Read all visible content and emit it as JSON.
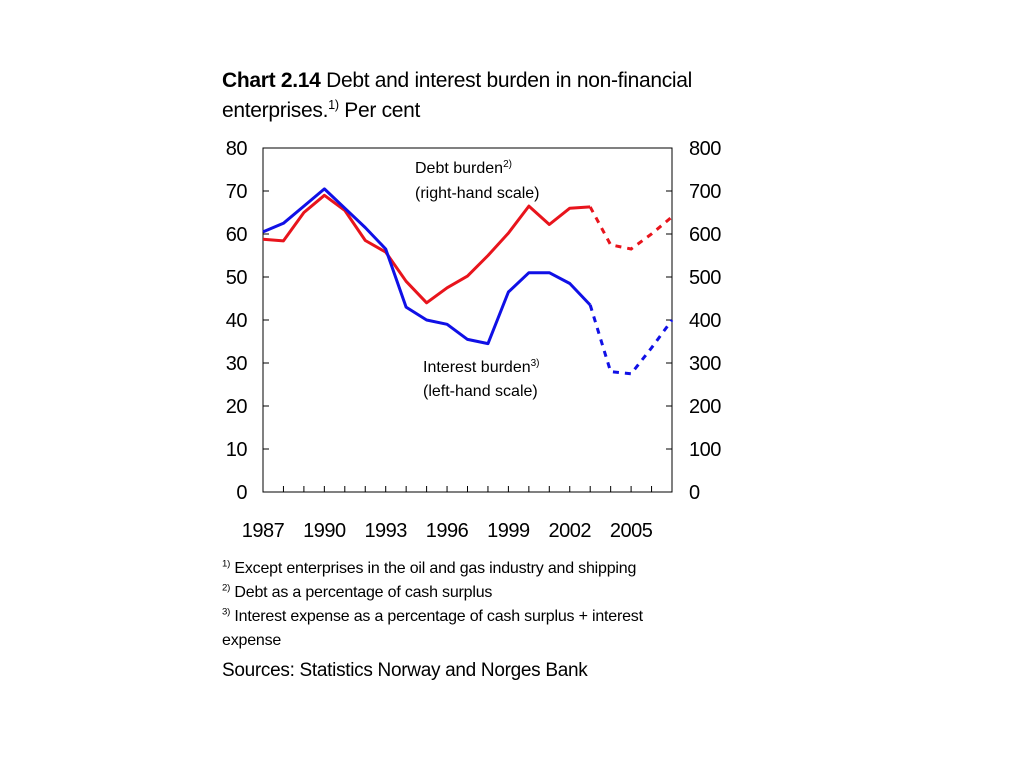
{
  "title": {
    "bold": "Chart 2.14",
    "text_line1": " Debt and interest burden in non-financial",
    "text_line2": "enterprises.",
    "sup": "1)",
    "text_after_sup": " Per cent"
  },
  "chart_data": {
    "type": "line",
    "x_ticks": [
      "1987",
      "1990",
      "1993",
      "1996",
      "1999",
      "2002",
      "2005"
    ],
    "xlim": [
      1987,
      2007
    ],
    "y_left": {
      "ticks": [
        "0",
        "10",
        "20",
        "30",
        "40",
        "50",
        "60",
        "70",
        "80"
      ],
      "ylim": [
        0,
        80
      ]
    },
    "y_right": {
      "ticks": [
        "0",
        "100",
        "200",
        "300",
        "400",
        "500",
        "600",
        "700",
        "800"
      ],
      "ylim": [
        0,
        800
      ]
    },
    "series": [
      {
        "name": "Debt burden",
        "label_sup": "2)",
        "label_line2": "(right-hand scale)",
        "color": "#e8141c",
        "axis": "right",
        "x": [
          1987,
          1988,
          1989,
          1990,
          1991,
          1992,
          1993,
          1994,
          1995,
          1996,
          1997,
          1998,
          1999,
          2000,
          2001,
          2002,
          2003
        ],
        "values": [
          588,
          584,
          650,
          690,
          655,
          585,
          558,
          490,
          440,
          475,
          502,
          550,
          602,
          665,
          622,
          660,
          663
        ],
        "projection_x": [
          2003,
          2004,
          2005,
          2006,
          2007
        ],
        "projection_values": [
          663,
          575,
          565,
          600,
          640
        ]
      },
      {
        "name": "Interest burden",
        "label_sup": "3)",
        "label_line2": "(left-hand scale)",
        "color": "#1010e6",
        "axis": "left",
        "x": [
          1987,
          1988,
          1989,
          1990,
          1991,
          1992,
          1993,
          1994,
          1995,
          1996,
          1997,
          1998,
          1999,
          2000,
          2001,
          2002,
          2003
        ],
        "values": [
          60.5,
          62.5,
          66.5,
          70.5,
          66,
          61.5,
          56.5,
          43,
          40,
          39,
          35.5,
          34.5,
          46.5,
          51,
          51,
          48.5,
          43.5
        ],
        "projection_x": [
          2003,
          2004,
          2005,
          2006,
          2007
        ],
        "projection_values": [
          43.5,
          28,
          27.5,
          33.5,
          40
        ]
      }
    ],
    "grid": false,
    "legend": "inline annotations"
  },
  "notes": [
    {
      "sup": "1)",
      "text": " Except enterprises in the oil and gas industry and shipping"
    },
    {
      "sup": "2)",
      "text": " Debt as a percentage of cash surplus"
    },
    {
      "sup": "3)",
      "text": " Interest expense as a percentage of cash surplus + interest expense"
    }
  ],
  "sources": "Sources: Statistics Norway and Norges Bank"
}
